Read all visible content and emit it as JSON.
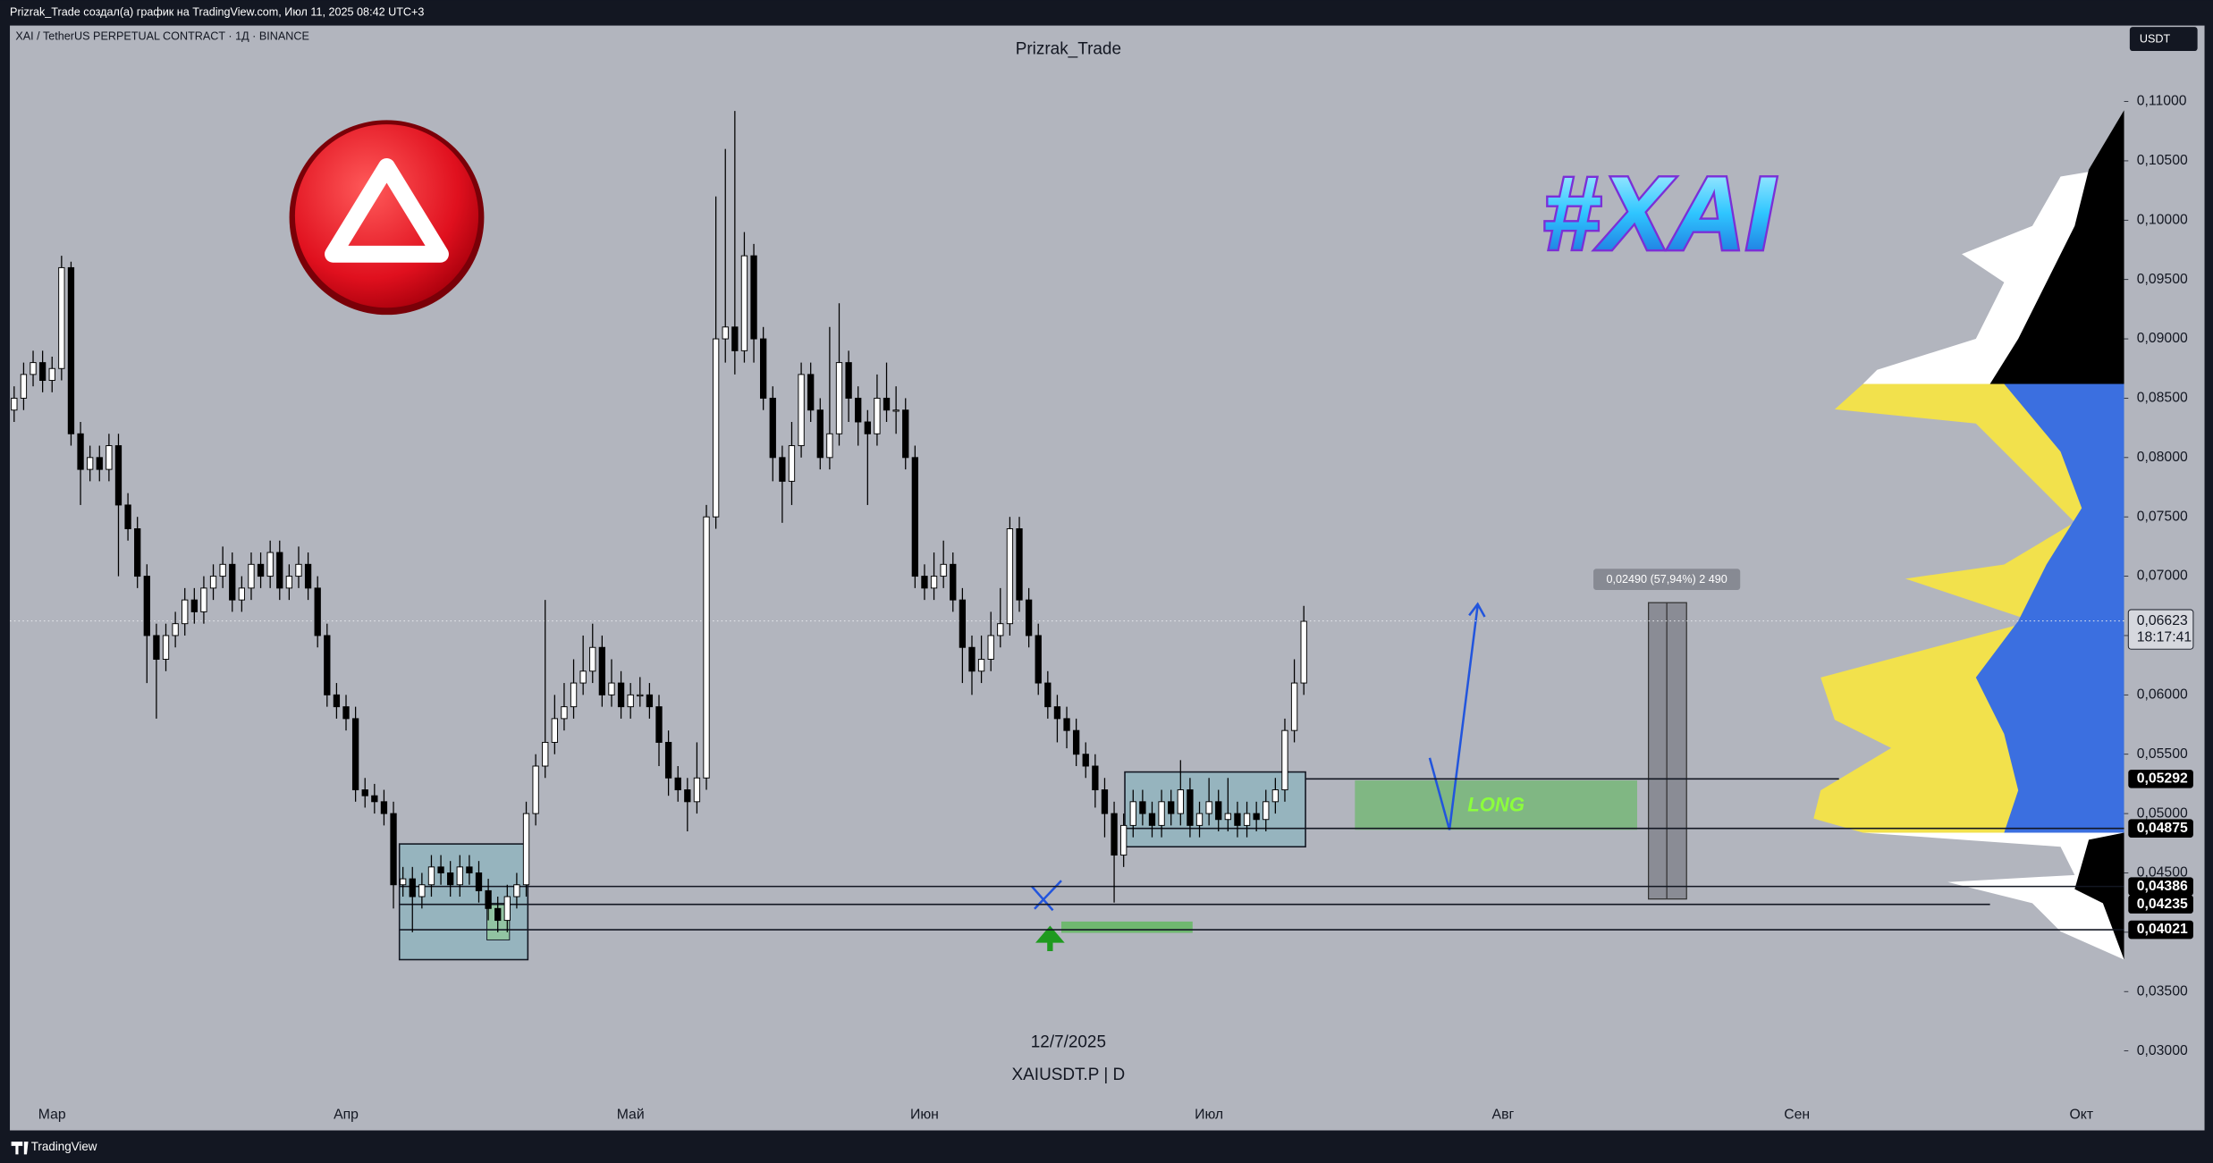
{
  "header": {
    "caption": "Prizrak_Trade создал(а) график на TradingView.com, Июл 11, 2025 08:42 UTC+3",
    "brand": "TradingView"
  },
  "chart_data": {
    "type": "candlestick",
    "symbol": "XAI / TetherUS PERPETUAL CONTRACT · 1Д · BINANCE",
    "author": "Prizrak_Trade",
    "currency": "USDT",
    "badge": "#XAI",
    "watermark_date": "12/7/2025",
    "watermark_symbol": "XAIUSDT.P | D",
    "annotations": {
      "long": "LONG",
      "measure": "0,02490 (57,94%) 2 490"
    },
    "open": [
      0.084,
      0.085,
      0.087,
      0.088,
      0.0865,
      0.0875,
      0.096,
      0.082,
      0.079,
      0.08,
      0.079,
      0.081,
      0.076,
      0.074,
      0.07,
      0.065,
      0.063,
      0.065,
      0.066,
      0.068,
      0.067,
      0.069,
      0.07,
      0.071,
      0.068,
      0.069,
      0.071,
      0.07,
      0.072,
      0.069,
      0.07,
      0.071,
      0.069,
      0.065,
      0.06,
      0.059,
      0.058,
      0.052,
      0.0515,
      0.051,
      0.05,
      0.044,
      0.0445,
      0.043,
      0.044,
      0.0455,
      0.045,
      0.044,
      0.0455,
      0.045,
      0.0435,
      0.042,
      0.041,
      0.043,
      0.044,
      0.05,
      0.054,
      0.056,
      0.058,
      0.059,
      0.061,
      0.062,
      0.064,
      0.06,
      0.061,
      0.059,
      0.06,
      0.06,
      0.059,
      0.056,
      0.053,
      0.052,
      0.051,
      0.053,
      0.075,
      0.09,
      0.091,
      0.089,
      0.097,
      0.09,
      0.085,
      0.08,
      0.078,
      0.081,
      0.087,
      0.084,
      0.08,
      0.082,
      0.088,
      0.085,
      0.083,
      0.082,
      0.085,
      0.084,
      0.084,
      0.08,
      0.07,
      0.069,
      0.07,
      0.071,
      0.068,
      0.064,
      0.062,
      0.063,
      0.065,
      0.066,
      0.074,
      0.068,
      0.065,
      0.061,
      0.059,
      0.058,
      0.057,
      0.055,
      0.054,
      0.052,
      0.05,
      0.0465,
      0.049,
      0.051,
      0.05,
      0.049,
      0.051,
      0.05,
      0.052,
      0.049,
      0.05,
      0.051,
      0.0495,
      0.05,
      0.049,
      0.05,
      0.0495,
      0.051,
      0.052,
      0.057,
      0.061
    ],
    "high": [
      0.086,
      0.088,
      0.089,
      0.089,
      0.0885,
      0.097,
      0.0965,
      0.083,
      0.081,
      0.081,
      0.082,
      0.082,
      0.077,
      0.075,
      0.071,
      0.066,
      0.066,
      0.067,
      0.069,
      0.069,
      0.07,
      0.071,
      0.0725,
      0.072,
      0.07,
      0.072,
      0.072,
      0.073,
      0.073,
      0.071,
      0.0725,
      0.072,
      0.07,
      0.066,
      0.061,
      0.06,
      0.059,
      0.053,
      0.0525,
      0.052,
      0.051,
      0.0455,
      0.0455,
      0.045,
      0.0465,
      0.0465,
      0.046,
      0.0465,
      0.0465,
      0.046,
      0.0445,
      0.043,
      0.044,
      0.045,
      0.051,
      0.055,
      0.068,
      0.06,
      0.061,
      0.063,
      0.065,
      0.066,
      0.065,
      0.063,
      0.062,
      0.061,
      0.0615,
      0.061,
      0.06,
      0.057,
      0.054,
      0.053,
      0.056,
      0.076,
      0.102,
      0.106,
      0.1092,
      0.099,
      0.098,
      0.091,
      0.086,
      0.081,
      0.083,
      0.088,
      0.088,
      0.085,
      0.091,
      0.093,
      0.089,
      0.086,
      0.084,
      0.087,
      0.088,
      0.086,
      0.085,
      0.081,
      0.071,
      0.072,
      0.073,
      0.072,
      0.069,
      0.065,
      0.065,
      0.067,
      0.069,
      0.075,
      0.075,
      0.069,
      0.066,
      0.062,
      0.06,
      0.059,
      0.058,
      0.056,
      0.055,
      0.053,
      0.051,
      0.05,
      0.052,
      0.052,
      0.051,
      0.052,
      0.052,
      0.0545,
      0.053,
      0.051,
      0.053,
      0.052,
      0.053,
      0.051,
      0.051,
      0.051,
      0.052,
      0.053,
      0.058,
      0.063,
      0.0675
    ],
    "low": [
      0.083,
      0.084,
      0.086,
      0.0855,
      0.0855,
      0.0865,
      0.081,
      0.076,
      0.078,
      0.078,
      0.078,
      0.07,
      0.073,
      0.069,
      0.061,
      0.058,
      0.062,
      0.064,
      0.065,
      0.066,
      0.066,
      0.068,
      0.069,
      0.067,
      0.067,
      0.068,
      0.069,
      0.069,
      0.068,
      0.068,
      0.069,
      0.068,
      0.064,
      0.059,
      0.058,
      0.057,
      0.051,
      0.0505,
      0.05,
      0.049,
      0.042,
      0.043,
      0.04,
      0.042,
      0.043,
      0.044,
      0.043,
      0.043,
      0.044,
      0.0425,
      0.041,
      0.04,
      0.04,
      0.042,
      0.043,
      0.049,
      0.053,
      0.055,
      0.057,
      0.058,
      0.06,
      0.061,
      0.059,
      0.059,
      0.058,
      0.058,
      0.059,
      0.058,
      0.054,
      0.0515,
      0.051,
      0.0485,
      0.05,
      0.052,
      0.074,
      0.088,
      0.087,
      0.088,
      0.088,
      0.084,
      0.078,
      0.0745,
      0.076,
      0.08,
      0.083,
      0.079,
      0.079,
      0.081,
      0.083,
      0.081,
      0.076,
      0.081,
      0.083,
      0.082,
      0.079,
      0.069,
      0.068,
      0.068,
      0.069,
      0.067,
      0.061,
      0.06,
      0.061,
      0.062,
      0.064,
      0.065,
      0.067,
      0.064,
      0.06,
      0.058,
      0.056,
      0.0555,
      0.054,
      0.053,
      0.0505,
      0.048,
      0.0425,
      0.0455,
      0.048,
      0.049,
      0.048,
      0.048,
      0.049,
      0.049,
      0.048,
      0.048,
      0.049,
      0.0485,
      0.0485,
      0.048,
      0.048,
      0.0485,
      0.0485,
      0.05,
      0.051,
      0.056,
      0.06
    ],
    "close": [
      0.085,
      0.087,
      0.088,
      0.0865,
      0.0875,
      0.096,
      0.082,
      0.079,
      0.08,
      0.079,
      0.081,
      0.076,
      0.074,
      0.07,
      0.065,
      0.063,
      0.065,
      0.066,
      0.068,
      0.067,
      0.069,
      0.07,
      0.071,
      0.068,
      0.069,
      0.071,
      0.07,
      0.072,
      0.069,
      0.07,
      0.071,
      0.069,
      0.065,
      0.06,
      0.059,
      0.058,
      0.052,
      0.0515,
      0.051,
      0.05,
      0.044,
      0.0445,
      0.043,
      0.044,
      0.0455,
      0.045,
      0.044,
      0.0455,
      0.045,
      0.0435,
      0.042,
      0.041,
      0.043,
      0.044,
      0.05,
      0.054,
      0.056,
      0.058,
      0.059,
      0.061,
      0.062,
      0.064,
      0.06,
      0.061,
      0.059,
      0.06,
      0.06,
      0.059,
      0.056,
      0.053,
      0.052,
      0.051,
      0.053,
      0.075,
      0.09,
      0.091,
      0.089,
      0.097,
      0.09,
      0.085,
      0.08,
      0.078,
      0.081,
      0.087,
      0.084,
      0.08,
      0.082,
      0.088,
      0.085,
      0.083,
      0.082,
      0.085,
      0.084,
      0.084,
      0.08,
      0.07,
      0.069,
      0.07,
      0.071,
      0.068,
      0.064,
      0.062,
      0.063,
      0.065,
      0.066,
      0.074,
      0.068,
      0.065,
      0.061,
      0.059,
      0.058,
      0.057,
      0.055,
      0.054,
      0.052,
      0.05,
      0.0465,
      0.049,
      0.051,
      0.05,
      0.049,
      0.051,
      0.05,
      0.052,
      0.049,
      0.05,
      0.051,
      0.0495,
      0.05,
      0.049,
      0.05,
      0.0495,
      0.051,
      0.052,
      0.057,
      0.061,
      0.0662
    ],
    "xlim": [
      -0.45,
      222.5
    ],
    "xticks": [
      {
        "value": 4,
        "label": "Мар"
      },
      {
        "value": 35,
        "label": "Апр"
      },
      {
        "value": 65,
        "label": "Май"
      },
      {
        "value": 96,
        "label": "Июн"
      },
      {
        "value": 126,
        "label": "Июл"
      },
      {
        "value": 157,
        "label": "Авг"
      },
      {
        "value": 188,
        "label": "Сен"
      },
      {
        "value": 218,
        "label": "Окт"
      }
    ],
    "ylim": [
      0.0258,
      0.1164
    ],
    "yticks": [
      {
        "value": 0.03,
        "label": "0,03000"
      },
      {
        "value": 0.035,
        "label": "0,03500"
      },
      {
        "value": 0.04,
        "label": "0,04000"
      },
      {
        "value": 0.045,
        "label": "0,04500"
      },
      {
        "value": 0.05,
        "label": "0,05000"
      },
      {
        "value": 0.055,
        "label": "0,05500"
      },
      {
        "value": 0.06,
        "label": "0,06000"
      },
      {
        "value": 0.065,
        "label": "0,06500"
      },
      {
        "value": 0.07,
        "label": "0,07000"
      },
      {
        "value": 0.075,
        "label": "0,07500"
      },
      {
        "value": 0.08,
        "label": "0,08000"
      },
      {
        "value": 0.085,
        "label": "0,08500"
      },
      {
        "value": 0.09,
        "label": "0,09000"
      },
      {
        "value": 0.095,
        "label": "0,09500"
      },
      {
        "value": 0.1,
        "label": "0,10000"
      },
      {
        "value": 0.105,
        "label": "0,10500"
      },
      {
        "value": 0.11,
        "label": "0,11000"
      }
    ],
    "last_price": {
      "value": 0.06623,
      "label": "0,06623"
    },
    "countdown": "18:17:41",
    "levels": [
      {
        "value": 0.05292,
        "label": "0,05292"
      },
      {
        "value": 0.04875,
        "label": "0,04875"
      },
      {
        "value": 0.04386,
        "label": "0,04386"
      },
      {
        "value": 0.04235,
        "label": "0,04235"
      },
      {
        "value": 0.04021,
        "label": "0,04021"
      }
    ],
    "up_color": "#ffffff",
    "down_color": "#000000"
  }
}
